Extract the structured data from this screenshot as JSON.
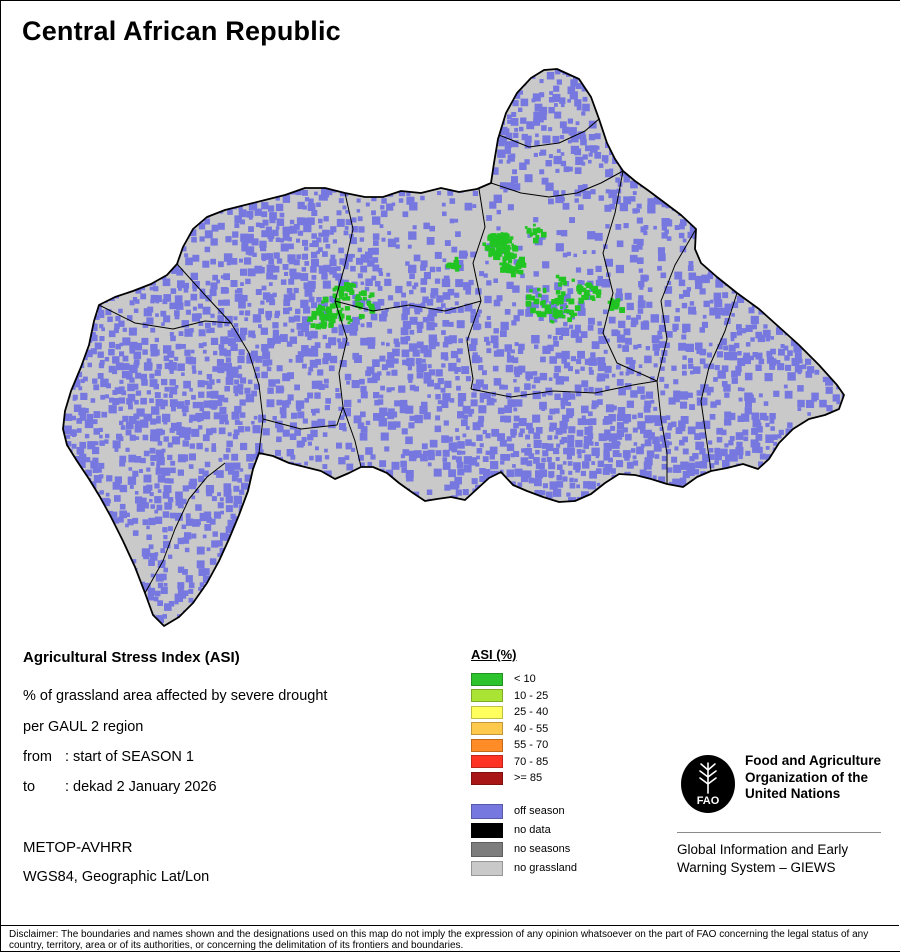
{
  "title": "Central African Republic",
  "info": {
    "heading": "Agricultural Stress Index (ASI)",
    "line1": "% of grassland area affected by severe drought",
    "line2": "per GAUL 2 region",
    "from_label": "from",
    "from_value": ": start of SEASON 1",
    "to_label": "to",
    "to_value": ": dekad 2 January 2026",
    "sensor": "METOP-AVHRR",
    "projection": "WGS84, Geographic Lat/Lon"
  },
  "legend": {
    "heading": "ASI (%)",
    "classes": [
      {
        "label": "< 10",
        "color": "#2cc32c"
      },
      {
        "label": "10 - 25",
        "color": "#a9e334"
      },
      {
        "label": "25 - 40",
        "color": "#ffff5e"
      },
      {
        "label": "40 - 55",
        "color": "#ffc94d"
      },
      {
        "label": "55 - 70",
        "color": "#ff8c26"
      },
      {
        "label": "70 - 85",
        "color": "#ff3324"
      },
      {
        "label": ">= 85",
        "color": "#a81616"
      }
    ],
    "extra_classes": [
      {
        "label": "off season",
        "color": "#7678e0"
      },
      {
        "label": "no data",
        "color": "#000000"
      },
      {
        "label": "no seasons",
        "color": "#7d7d7d"
      },
      {
        "label": "no grassland",
        "color": "#c9c9c9"
      }
    ]
  },
  "org": {
    "fao_name": "Food and Agriculture\nOrganization of the\nUnited Nations",
    "fao_acronym": "FAO",
    "giews": "Global Information and Early\nWarning System – GIEWS"
  },
  "disclaimer": "Disclaimer: The boundaries and names shown and the designations used on this map do not imply the expression of any opinion whatsoever on the part of FAO concerning the legal status of any country, territory, area or of its authorities, or concerning the delimitation of its frontiers and boundaries.",
  "map": {
    "colors": {
      "off_season": "#7678e0",
      "no_grassland": "#c9c9c9",
      "stress_low": "#21c422",
      "boundary": "#000000"
    }
  }
}
